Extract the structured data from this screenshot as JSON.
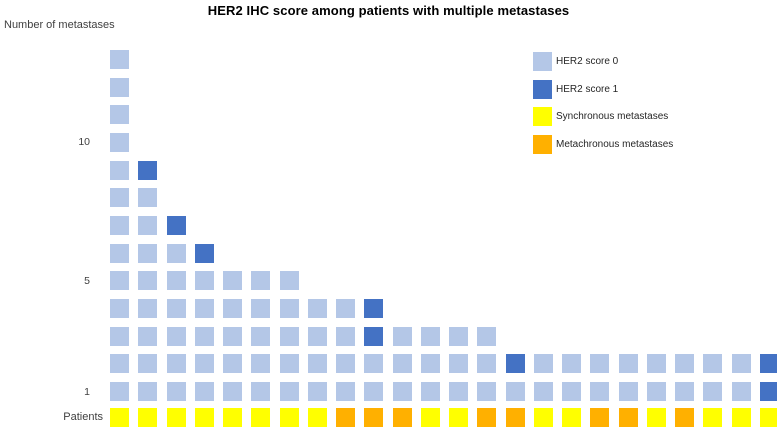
{
  "title": "HER2 IHC score among patients with multiple metastases",
  "axis": {
    "y_label": "Number of metastases",
    "x_label": "Patients"
  },
  "colors": {
    "her2_score_0": "#B4C7E7",
    "her2_score_1": "#4472C4",
    "synchronous": "#FFFF00",
    "metachronous": "#FFB000"
  },
  "legend": {
    "position": "top-right",
    "items": [
      {
        "label": "HER2 score 0",
        "color_key": "her2_score_0",
        "color": "#B4C7E7"
      },
      {
        "label": "HER2 score 1",
        "color_key": "her2_score_1",
        "color": "#4472C4"
      },
      {
        "label": "Synchronous metastases",
        "color_key": "synchronous",
        "color": "#FFFF00"
      },
      {
        "label": "Metachronous metastases",
        "color_key": "metachronous",
        "color": "#FFB000"
      }
    ]
  },
  "chart_data": {
    "type": "bar",
    "variant": "unit-square-waffle",
    "title": "HER2 IHC score among patients with multiple metastases",
    "xlabel": "Patients",
    "ylabel": "Number of metastases",
    "yticks": [
      10,
      5,
      1
    ],
    "ylim": [
      0,
      13
    ],
    "grid": false,
    "legend_position": "top-right",
    "n_patients": 24,
    "metastases_per_patient": [
      13,
      9,
      7,
      6,
      5,
      5,
      5,
      4,
      4,
      4,
      3,
      3,
      3,
      3,
      2,
      2,
      2,
      2,
      2,
      2,
      2,
      2,
      2,
      2
    ],
    "patients": [
      {
        "patient": 1,
        "metastases": 13,
        "her2_score_1_units": [],
        "timing": "synchronous"
      },
      {
        "patient": 2,
        "metastases": 9,
        "her2_score_1_units": [
          9
        ],
        "timing": "synchronous"
      },
      {
        "patient": 3,
        "metastases": 7,
        "her2_score_1_units": [
          7
        ],
        "timing": "synchronous"
      },
      {
        "patient": 4,
        "metastases": 6,
        "her2_score_1_units": [
          6
        ],
        "timing": "synchronous"
      },
      {
        "patient": 5,
        "metastases": 5,
        "her2_score_1_units": [],
        "timing": "synchronous"
      },
      {
        "patient": 6,
        "metastases": 5,
        "her2_score_1_units": [],
        "timing": "synchronous"
      },
      {
        "patient": 7,
        "metastases": 5,
        "her2_score_1_units": [],
        "timing": "synchronous"
      },
      {
        "patient": 8,
        "metastases": 4,
        "her2_score_1_units": [],
        "timing": "synchronous"
      },
      {
        "patient": 9,
        "metastases": 4,
        "her2_score_1_units": [],
        "timing": "metachronous"
      },
      {
        "patient": 10,
        "metastases": 4,
        "her2_score_1_units": [
          3,
          4
        ],
        "timing": "metachronous"
      },
      {
        "patient": 11,
        "metastases": 3,
        "her2_score_1_units": [],
        "timing": "metachronous"
      },
      {
        "patient": 12,
        "metastases": 3,
        "her2_score_1_units": [],
        "timing": "synchronous"
      },
      {
        "patient": 13,
        "metastases": 3,
        "her2_score_1_units": [],
        "timing": "synchronous"
      },
      {
        "patient": 14,
        "metastases": 3,
        "her2_score_1_units": [],
        "timing": "metachronous"
      },
      {
        "patient": 15,
        "metastases": 2,
        "her2_score_1_units": [
          2
        ],
        "timing": "metachronous"
      },
      {
        "patient": 16,
        "metastases": 2,
        "her2_score_1_units": [],
        "timing": "synchronous"
      },
      {
        "patient": 17,
        "metastases": 2,
        "her2_score_1_units": [],
        "timing": "synchronous"
      },
      {
        "patient": 18,
        "metastases": 2,
        "her2_score_1_units": [],
        "timing": "metachronous"
      },
      {
        "patient": 19,
        "metastases": 2,
        "her2_score_1_units": [],
        "timing": "metachronous"
      },
      {
        "patient": 20,
        "metastases": 2,
        "her2_score_1_units": [],
        "timing": "synchronous"
      },
      {
        "patient": 21,
        "metastases": 2,
        "her2_score_1_units": [],
        "timing": "metachronous"
      },
      {
        "patient": 22,
        "metastases": 2,
        "her2_score_1_units": [],
        "timing": "synchronous"
      },
      {
        "patient": 23,
        "metastases": 2,
        "her2_score_1_units": [],
        "timing": "synchronous"
      },
      {
        "patient": 24,
        "metastases": 2,
        "her2_score_1_units": [
          1,
          2
        ],
        "timing": "synchronous"
      }
    ]
  }
}
